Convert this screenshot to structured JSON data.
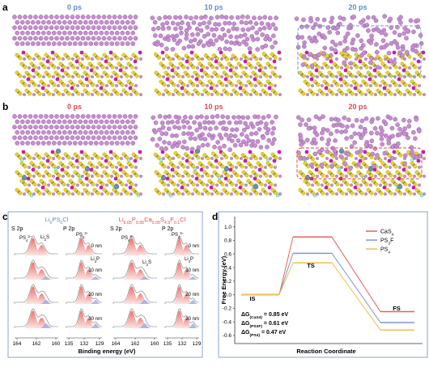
{
  "panel_a": {
    "label": "a",
    "times": [
      "0 ps",
      "10 ps",
      "20 ps"
    ]
  },
  "panel_b": {
    "label": "b",
    "times": [
      "0 ps",
      "10 ps",
      "20 ps"
    ]
  },
  "panel_c": {
    "label": "c",
    "samples": [
      [
        "Li",
        {
          "sub": "6"
        },
        "PS",
        {
          "sub": "5"
        },
        "Cl"
      ],
      [
        "Li",
        {
          "sub": "6.05"
        },
        "P",
        {
          "sub": "0.95"
        },
        "Ca",
        {
          "sub": "0.05"
        },
        "S",
        {
          "sub": "4.9"
        },
        "F",
        {
          "sub": "0.1"
        },
        "Cl"
      ]
    ],
    "regions": [
      "S 2p",
      "P 2p",
      "S 2p",
      "P 2p"
    ],
    "depths": [
      "0 nm",
      "10 nm",
      "20 nm",
      "30 nm"
    ],
    "axis_ticks": [
      [
        164,
        162,
        160
      ],
      [
        135,
        132,
        129
      ],
      [
        164,
        162,
        160
      ],
      [
        135,
        132,
        129
      ]
    ],
    "xlabel": "Binding energy (eV)",
    "annotations": [
      [
        "PS",
        {
          "sub": "4"
        },
        {
          "sup": "3−"
        }
      ],
      [
        "Li",
        {
          "sub": "2"
        },
        "S"
      ],
      [
        "PS",
        {
          "sub": "4"
        },
        {
          "sup": "3−"
        }
      ],
      [
        "Li",
        {
          "sub": "3"
        },
        "P"
      ],
      [
        "PS",
        {
          "sub": "4"
        },
        {
          "sup": "3−"
        }
      ],
      [
        "Li",
        {
          "sub": "2"
        },
        "S"
      ],
      [
        "PS",
        {
          "sub": "4"
        },
        {
          "sup": "3−"
        }
      ],
      [
        "Li",
        {
          "sub": "3"
        },
        "P"
      ]
    ]
  },
  "panel_d": {
    "label": "d",
    "type": "line",
    "ylabel": "Free Energy (eV)",
    "xlabel": "Reaction Coordinate",
    "states": [
      "IS",
      "TS",
      "FS"
    ],
    "ylim": [
      -0.72,
      1.15
    ],
    "yticks": [
      {
        "value": 1.0,
        "label": "1.0"
      },
      0.8,
      0.6,
      0.4,
      0.2,
      {
        "value": 0.0,
        "label": "0.0"
      },
      -0.2,
      -0.4,
      -0.6
    ],
    "series": [
      {
        "name": [
          "CaS",
          {
            "sub": "4"
          }
        ],
        "color": "#e8605a",
        "values": [
          0,
          0.85,
          -0.25
        ]
      },
      {
        "name": [
          "PS",
          {
            "sub": "3"
          },
          "F"
        ],
        "color": "#7f96d8",
        "values": [
          0,
          0.61,
          -0.41
        ]
      },
      {
        "name": [
          "PS",
          {
            "sub": "4"
          }
        ],
        "color": "#f2c04a",
        "values": [
          0,
          0.47,
          -0.52
        ]
      }
    ],
    "annotations": [
      [
        "ΔG",
        {
          "sub": "(CaS4)"
        },
        " = 0.85 eV"
      ],
      [
        "ΔG",
        {
          "sub": "(PS3F)"
        },
        " = 0.61 eV"
      ],
      [
        "ΔG",
        {
          "sub": "(PS4)"
        },
        " = 0.47 eV"
      ]
    ]
  }
}
